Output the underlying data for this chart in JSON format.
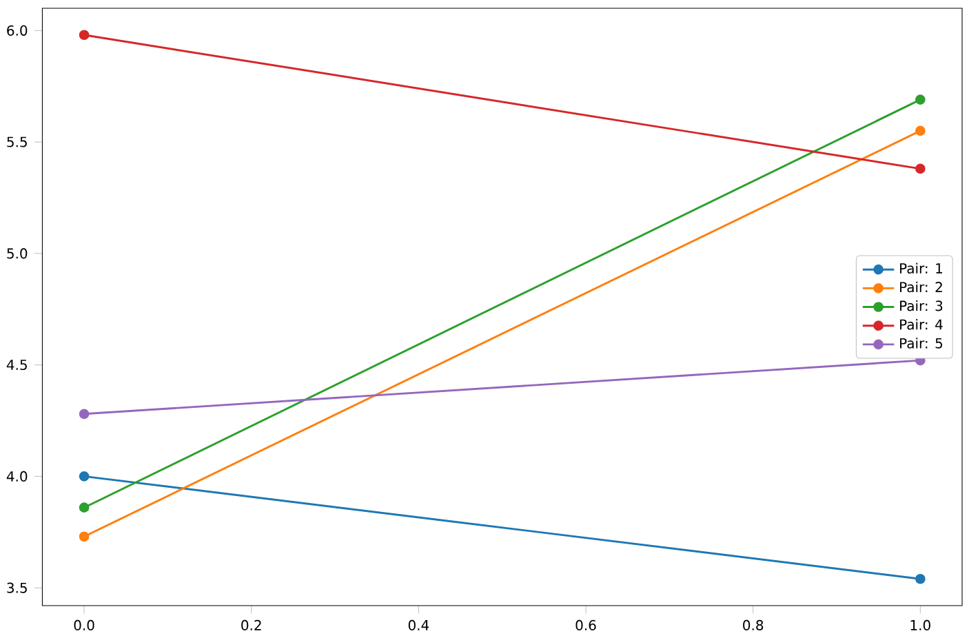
{
  "chart_data": {
    "type": "line",
    "x": [
      0,
      1
    ],
    "series": [
      {
        "name": "Pair: 1",
        "color": "#1f77b4",
        "values": [
          4.0,
          3.54
        ]
      },
      {
        "name": "Pair: 2",
        "color": "#ff7f0e",
        "values": [
          3.73,
          5.55
        ]
      },
      {
        "name": "Pair: 3",
        "color": "#2ca02c",
        "values": [
          3.86,
          5.69
        ]
      },
      {
        "name": "Pair: 4",
        "color": "#d62728",
        "values": [
          5.98,
          5.38
        ]
      },
      {
        "name": "Pair: 5",
        "color": "#9467bd",
        "values": [
          4.28,
          4.52
        ]
      }
    ],
    "xlim": [
      -0.05,
      1.05
    ],
    "xticks": [
      {
        "value": 0,
        "label": "0.0"
      },
      {
        "value": 0.2,
        "label": "0.2"
      },
      {
        "value": 0.4,
        "label": "0.4"
      },
      {
        "value": 0.6,
        "label": "0.6"
      },
      {
        "value": 0.8,
        "label": "0.8"
      },
      {
        "value": 1,
        "label": "1.0"
      }
    ],
    "ylim": [
      3.42,
      6.1
    ],
    "yticks": [
      {
        "value": 3.5,
        "label": "3.5"
      },
      {
        "value": 4,
        "label": "4.0"
      },
      {
        "value": 4.5,
        "label": "4.5"
      },
      {
        "value": 5,
        "label": "5.0"
      },
      {
        "value": 5.5,
        "label": "5.5"
      },
      {
        "value": 6,
        "label": "6.0"
      }
    ],
    "grid": false,
    "legend": "right",
    "marker": "circle",
    "line_style": "solid"
  }
}
